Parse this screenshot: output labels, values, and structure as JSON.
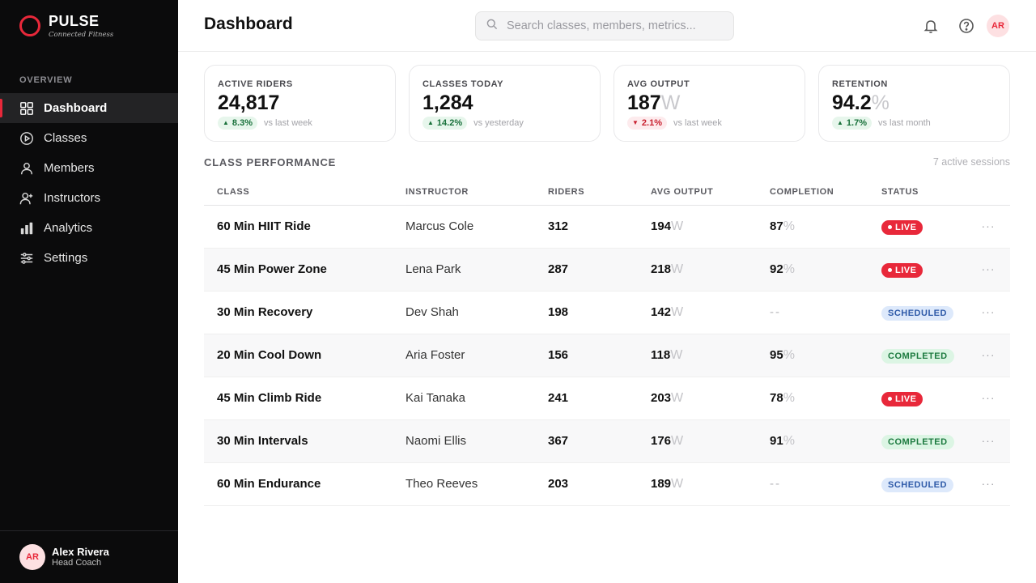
{
  "brand": {
    "name": "PULSE",
    "tagline": "Connected Fitness",
    "accent": "#e8283a"
  },
  "sidebar": {
    "section": "OVERVIEW",
    "items": [
      {
        "label": "Dashboard",
        "icon": "grid-icon",
        "active": true
      },
      {
        "label": "Classes",
        "icon": "play-circle-icon"
      },
      {
        "label": "Members",
        "icon": "user-icon"
      },
      {
        "label": "Instructors",
        "icon": "user-plus-icon"
      },
      {
        "label": "Analytics",
        "icon": "bar-chart-icon"
      },
      {
        "label": "Settings",
        "icon": "sliders-icon"
      }
    ],
    "user": {
      "initials": "AR",
      "name": "Alex Rivera",
      "role": "Head Coach"
    }
  },
  "header": {
    "title": "Dashboard",
    "search_placeholder": "Search classes, members, metrics...",
    "avatar_initials": "AR"
  },
  "stats": [
    {
      "label": "ACTIVE RIDERS",
      "value": "24,817",
      "unit": "",
      "delta": "8.3%",
      "direction": "up",
      "note": "vs last week"
    },
    {
      "label": "CLASSES TODAY",
      "value": "1,284",
      "unit": "",
      "delta": "14.2%",
      "direction": "up",
      "note": "vs yesterday"
    },
    {
      "label": "AVG OUTPUT",
      "value": "187",
      "unit": "W",
      "delta": "2.1%",
      "direction": "down",
      "note": "vs last week"
    },
    {
      "label": "RETENTION",
      "value": "94.2",
      "unit": "%",
      "delta": "1.7%",
      "direction": "up",
      "note": "vs last month"
    }
  ],
  "table": {
    "title": "CLASS PERFORMANCE",
    "meta": "7 active sessions",
    "columns": [
      "CLASS",
      "INSTRUCTOR",
      "RIDERS",
      "AVG OUTPUT",
      "COMPLETION",
      "STATUS"
    ],
    "output_unit": "W",
    "completion_unit": "%",
    "rows": [
      {
        "class": "60 Min HIIT Ride",
        "instructor": "Marcus Cole",
        "riders": "312",
        "output": "194",
        "completion": "87",
        "status": "LIVE"
      },
      {
        "class": "45 Min Power Zone",
        "instructor": "Lena Park",
        "riders": "287",
        "output": "218",
        "completion": "92",
        "status": "LIVE"
      },
      {
        "class": "30 Min Recovery",
        "instructor": "Dev Shah",
        "riders": "198",
        "output": "142",
        "completion": "",
        "status": "SCHEDULED"
      },
      {
        "class": "20 Min Cool Down",
        "instructor": "Aria Foster",
        "riders": "156",
        "output": "118",
        "completion": "95",
        "status": "COMPLETED"
      },
      {
        "class": "45 Min Climb Ride",
        "instructor": "Kai Tanaka",
        "riders": "241",
        "output": "203",
        "completion": "78",
        "status": "LIVE"
      },
      {
        "class": "30 Min Intervals",
        "instructor": "Naomi Ellis",
        "riders": "367",
        "output": "176",
        "completion": "91",
        "status": "COMPLETED"
      },
      {
        "class": "60 Min Endurance",
        "instructor": "Theo Reeves",
        "riders": "203",
        "output": "189",
        "completion": "",
        "status": "SCHEDULED"
      }
    ]
  }
}
